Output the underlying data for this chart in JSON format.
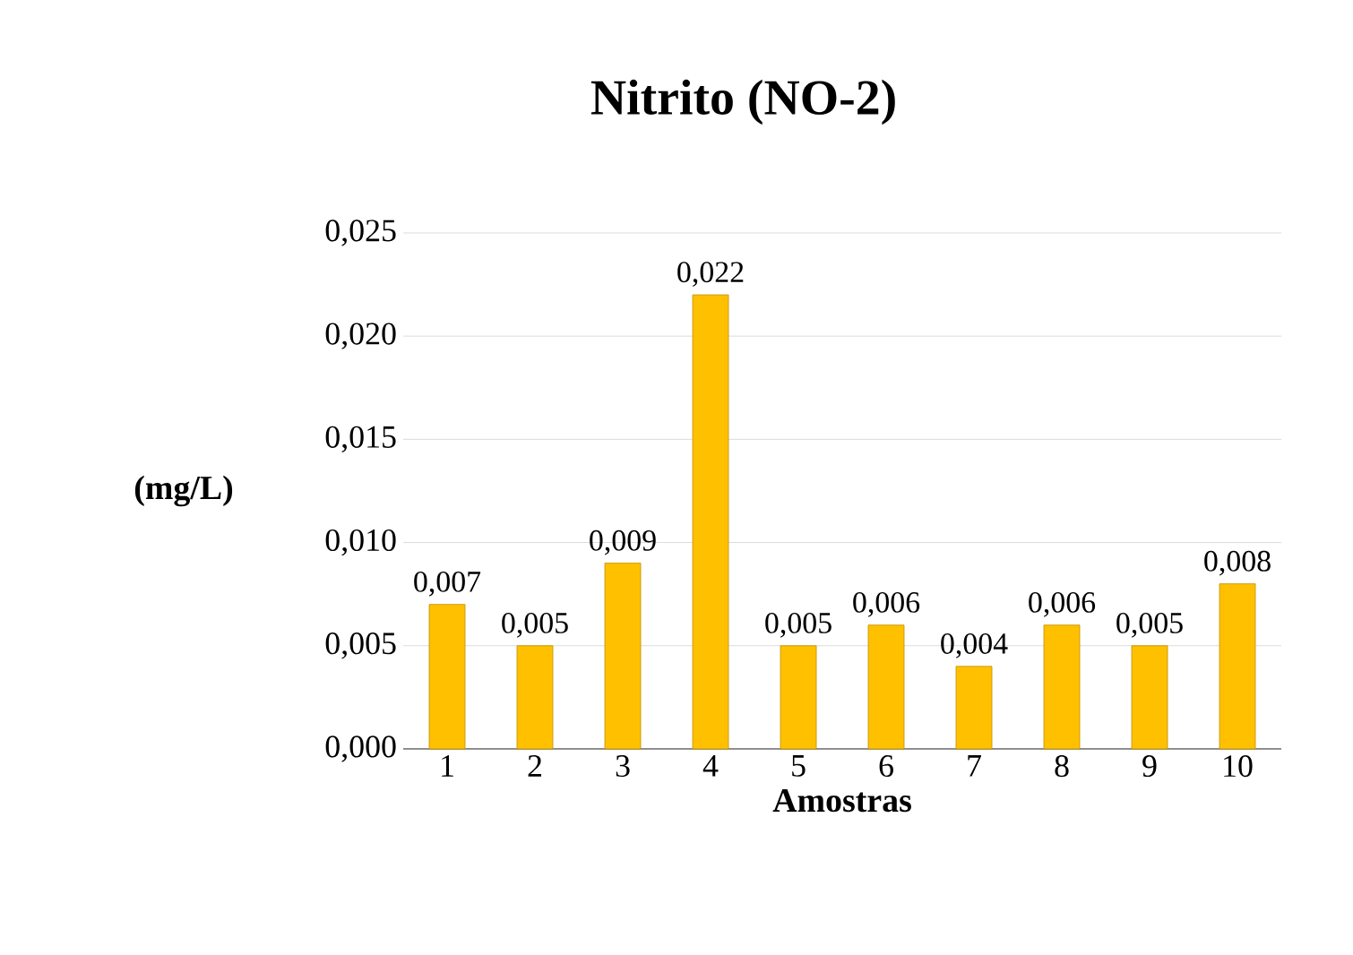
{
  "chart_data": {
    "type": "bar",
    "title": "Nitrito (NO-2)",
    "xlabel": "Amostras",
    "ylabel": "(mg/L)",
    "categories": [
      "1",
      "2",
      "3",
      "4",
      "5",
      "6",
      "7",
      "8",
      "9",
      "10"
    ],
    "values": [
      0.007,
      0.005,
      0.009,
      0.022,
      0.005,
      0.006,
      0.004,
      0.006,
      0.005,
      0.008
    ],
    "value_labels": [
      "0,007",
      "0,005",
      "0,009",
      "0,022",
      "0,005",
      "0,006",
      "0,004",
      "0,006",
      "0,005",
      "0,008"
    ],
    "color": "#ffc000",
    "ylim": [
      0,
      0.025
    ],
    "yticks": [
      {
        "value": 0,
        "label": "0,000"
      },
      {
        "value": 0.005,
        "label": "0,005"
      },
      {
        "value": 0.01,
        "label": "0,010"
      },
      {
        "value": 0.015,
        "label": "0,015"
      },
      {
        "value": 0.02,
        "label": "0,020"
      },
      {
        "value": 0.025,
        "label": "0,025"
      }
    ],
    "grid": "y"
  }
}
